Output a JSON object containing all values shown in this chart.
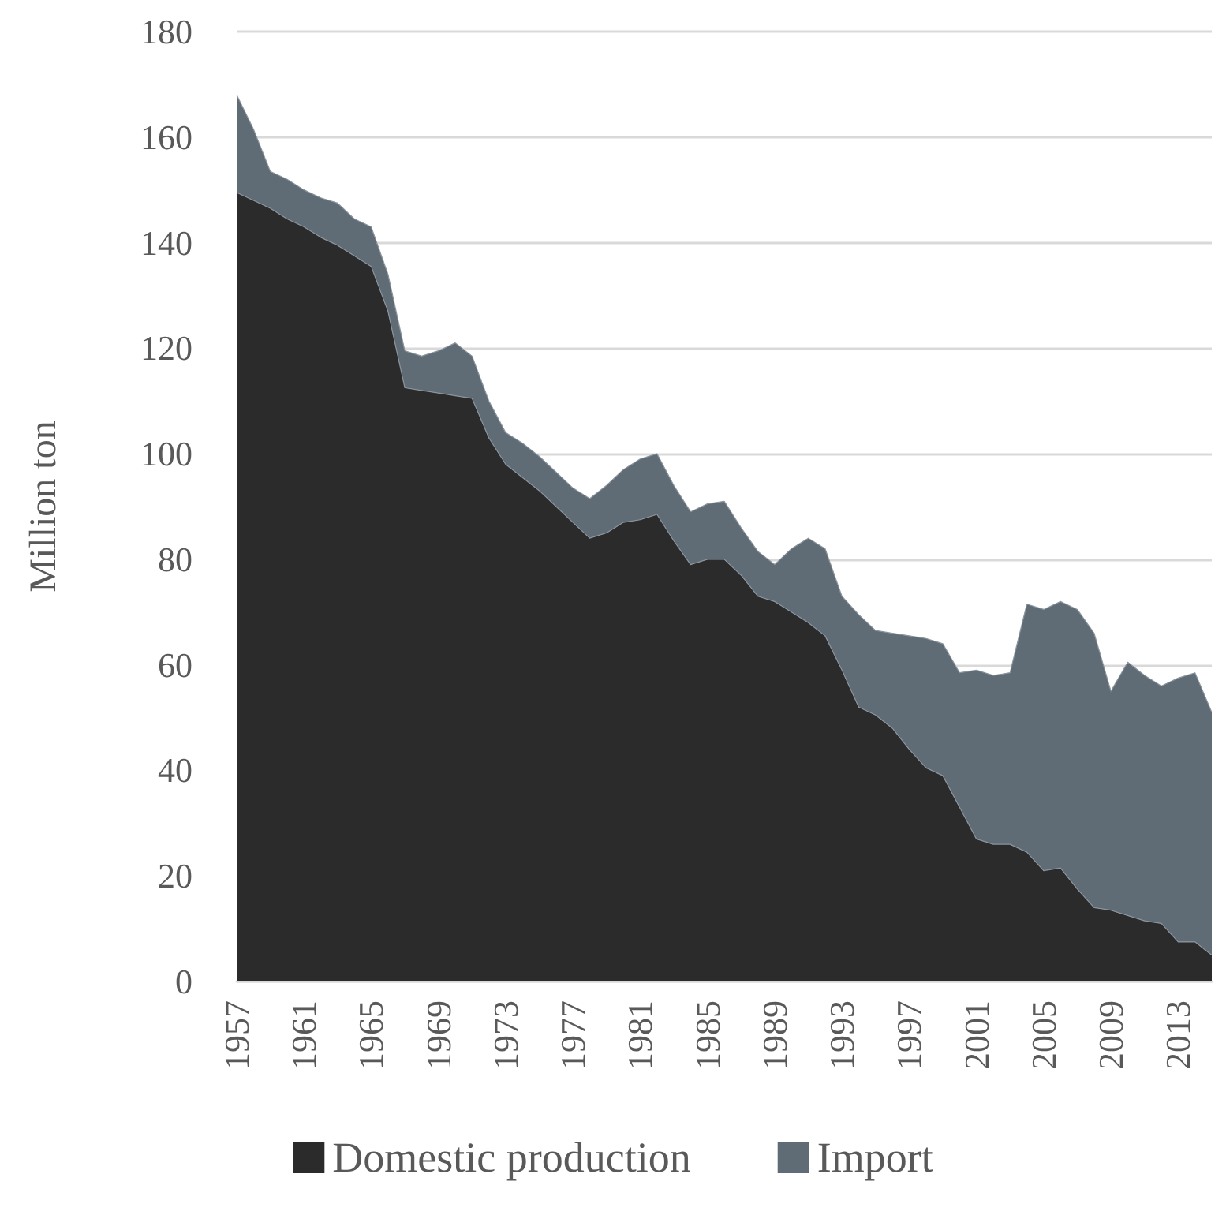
{
  "chart_data": {
    "type": "area",
    "ylabel": "Million ton",
    "categories": [
      "1957",
      null,
      null,
      null,
      "1961",
      null,
      null,
      null,
      "1965",
      null,
      null,
      null,
      "1969",
      null,
      null,
      null,
      "1973",
      null,
      null,
      null,
      "1977",
      null,
      null,
      null,
      "1981",
      null,
      null,
      null,
      "1985",
      null,
      null,
      null,
      "1989",
      null,
      null,
      null,
      "1993",
      null,
      null,
      null,
      "1997",
      null,
      null,
      null,
      "2001",
      null,
      null,
      null,
      "2005",
      null,
      null,
      null,
      "2009",
      null,
      null,
      null,
      "2013",
      null,
      null
    ],
    "series": [
      {
        "name": "Domestic production",
        "color": "#2b2b2b",
        "values": [
          149.5,
          148,
          146.5,
          144.5,
          143,
          141,
          139.5,
          137.5,
          135.5,
          127,
          112.5,
          112,
          111.5,
          111,
          110.5,
          103,
          98,
          95.5,
          93,
          90,
          87,
          84,
          85,
          87,
          87.5,
          88.5,
          83.5,
          79,
          80,
          80,
          77,
          73,
          72,
          70,
          68,
          65.5,
          59,
          52,
          50.5,
          48,
          44,
          40.5,
          39,
          33,
          27,
          26,
          26,
          24.5,
          21,
          21.5,
          17.5,
          14,
          13.5,
          12.5,
          11.5,
          11,
          7.5,
          7.5,
          5
        ]
      },
      {
        "name": "Import",
        "color": "#5f6b75",
        "values": [
          18.5,
          13.5,
          7,
          7.5,
          7,
          7.5,
          8,
          7,
          7.5,
          7,
          7,
          6.5,
          8,
          10,
          8,
          7,
          6,
          6.5,
          6.5,
          6.5,
          6.5,
          7.5,
          9,
          10,
          11.5,
          11.5,
          10.5,
          10,
          10.5,
          11,
          9,
          8.5,
          7,
          12,
          16,
          16.5,
          14,
          17.5,
          16,
          18,
          21.5,
          24.5,
          25,
          25.5,
          32,
          32,
          32.5,
          47,
          49.5,
          50.5,
          53,
          52,
          41.5,
          48,
          46.5,
          45,
          50,
          51,
          46
        ]
      }
    ],
    "stacked": true,
    "ylim": [
      0,
      180
    ],
    "yticks": [
      0,
      20,
      40,
      60,
      80,
      100,
      120,
      140,
      160,
      180
    ],
    "grid": "y",
    "legend": "bottom"
  }
}
